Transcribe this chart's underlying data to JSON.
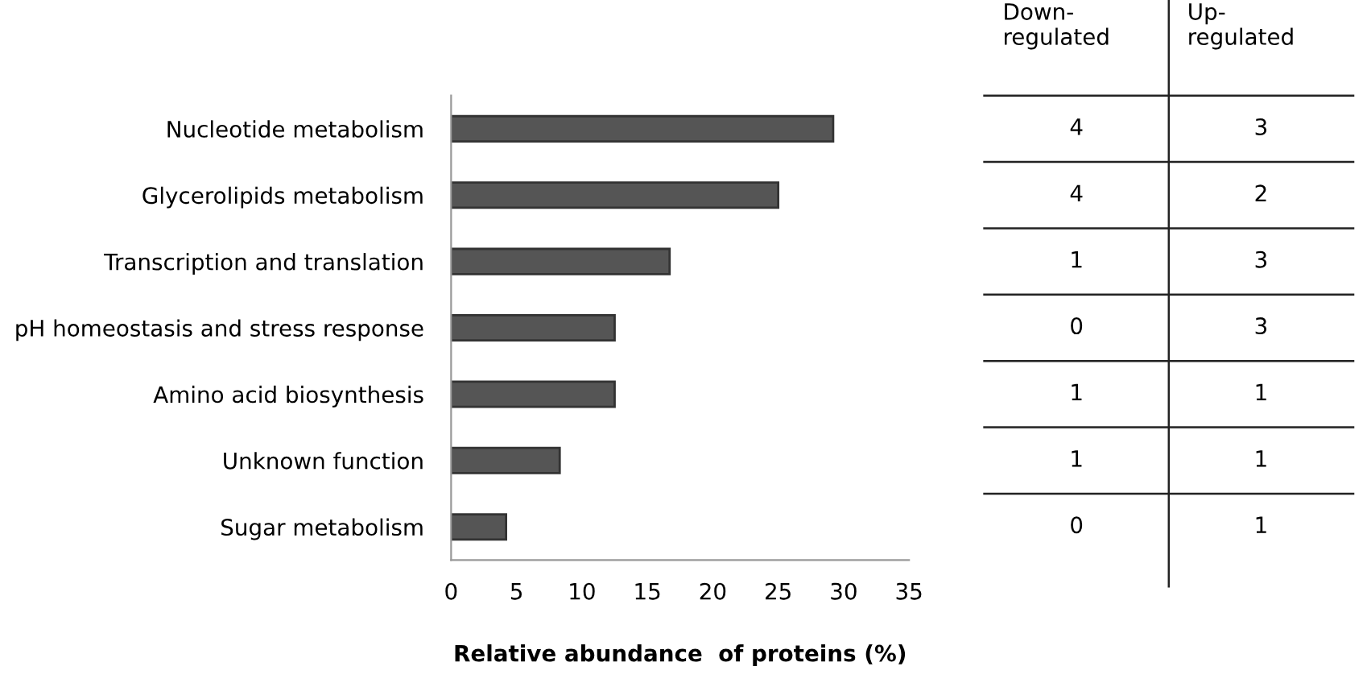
{
  "chart_data": [
    {
      "type": "bar",
      "orientation": "horizontal",
      "xlabel": "Relative abundance  of proteins (%)",
      "categories": [
        "Nucleotide metabolism",
        "Glycerolipids metabolism",
        "Transcription and translation",
        "pH homeostasis and stress response",
        "Amino acid biosynthesis",
        "Unknown function",
        "Sugar metabolism"
      ],
      "values": [
        29.2,
        25,
        16.7,
        12.5,
        12.5,
        8.3,
        4.2
      ],
      "color": "#555555",
      "xlim": [
        0,
        35
      ],
      "xticks": [
        0,
        5,
        10,
        15,
        20,
        25,
        30,
        35
      ],
      "grid": false,
      "legend": false
    },
    {
      "type": "other",
      "annotations": [
        "Down-\nregulated",
        "Up-\nregulated",
        "4",
        "3",
        "4",
        "2",
        "1",
        "3",
        "0",
        "3",
        "1",
        "1",
        "1",
        "1",
        "0",
        "1"
      ]
    }
  ]
}
